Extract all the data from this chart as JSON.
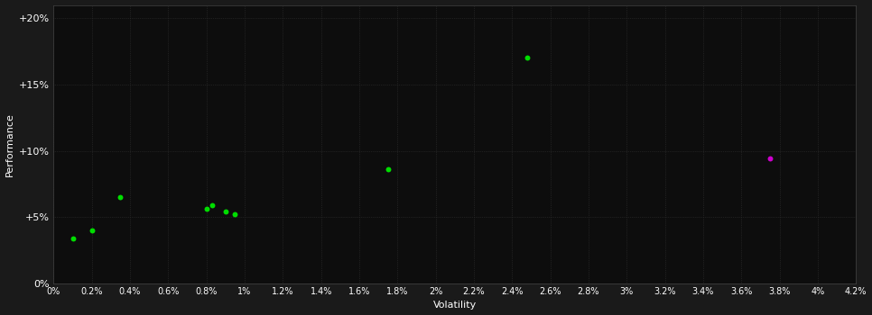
{
  "background_color": "#1a1a1a",
  "plot_bg_color": "#0d0d0d",
  "grid_color": "#333333",
  "text_color": "#ffffff",
  "xlabel": "Volatility",
  "ylabel": "Performance",
  "xlim": [
    0.0,
    0.042
  ],
  "ylim": [
    0.0,
    0.21
  ],
  "green_points": [
    [
      0.001,
      0.034
    ],
    [
      0.002,
      0.04
    ],
    [
      0.0035,
      0.065
    ],
    [
      0.008,
      0.056
    ],
    [
      0.0083,
      0.059
    ],
    [
      0.009,
      0.054
    ],
    [
      0.0095,
      0.052
    ],
    [
      0.0175,
      0.086
    ],
    [
      0.0248,
      0.17
    ]
  ],
  "magenta_points": [
    [
      0.0375,
      0.094
    ]
  ],
  "green_color": "#00dd00",
  "magenta_color": "#cc00cc",
  "marker_size": 18
}
